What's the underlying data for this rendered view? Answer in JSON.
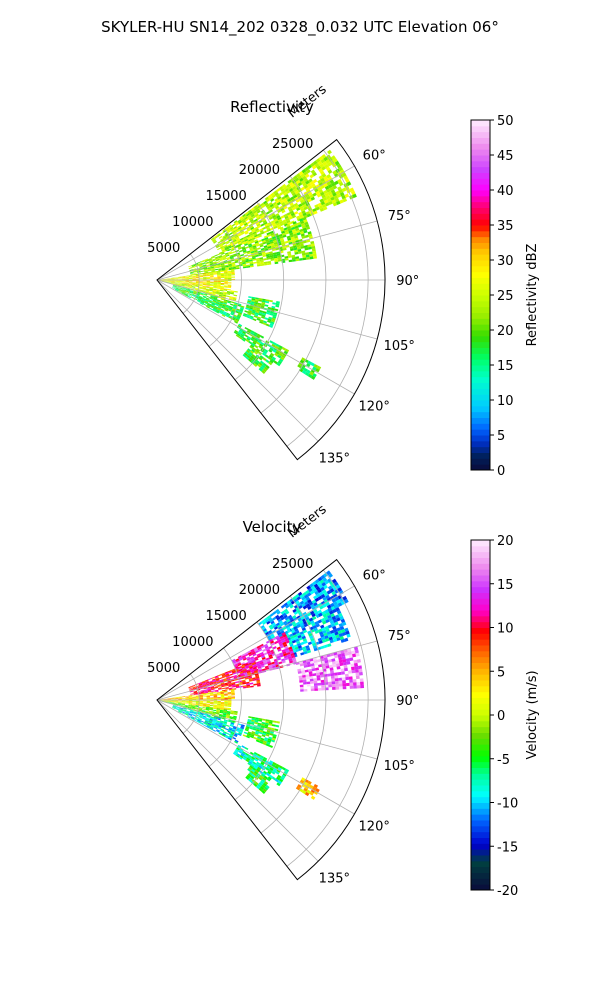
{
  "figure_title": "SKYLER-HU  SN14_202  0328_0.032 UTC Elevation 06°",
  "chart_data": [
    {
      "type": "heatmap",
      "subtype": "polar-sector radar PPI",
      "title": "Reflectivity",
      "radial_label": "Meters",
      "r_ticks": [
        5000,
        10000,
        15000,
        20000,
        25000
      ],
      "r_tick_labels": [
        "5000",
        "10000",
        "15000",
        "20000",
        "25000"
      ],
      "r_max": 27000,
      "theta_range_deg": [
        52,
        142
      ],
      "theta_ticks": [
        60,
        75,
        90,
        105,
        120,
        135
      ],
      "theta_tick_labels": [
        "60°",
        "75°",
        "90°",
        "105°",
        "120°",
        "135°"
      ],
      "grid": true,
      "colorbar": {
        "label": "Reflectivity dBZ",
        "range": [
          0,
          50
        ],
        "ticks": [
          0,
          5,
          10,
          15,
          20,
          25,
          30,
          35,
          40,
          45,
          50
        ],
        "tick_labels": [
          "0",
          "5",
          "10",
          "15",
          "20",
          "25",
          "30",
          "35",
          "40",
          "45",
          "50"
        ]
      },
      "echo_regions": [
        {
          "az": [
            53,
            67
          ],
          "r": [
            8000,
            25500
          ],
          "mean": 24
        },
        {
          "az": [
            67,
            82
          ],
          "r": [
            4000,
            19000
          ],
          "mean": 22
        },
        {
          "az": [
            82,
            90
          ],
          "r": [
            0,
            9000
          ],
          "mean": 27
        },
        {
          "az": [
            90,
            98
          ],
          "r": [
            0,
            8500
          ],
          "mean": 28
        },
        {
          "az": [
            98,
            106
          ],
          "r": [
            0,
            9500
          ],
          "mean": 25
        },
        {
          "az": [
            106,
            118
          ],
          "r": [
            2000,
            10500
          ],
          "mean": 18
        },
        {
          "az": [
            100,
            112
          ],
          "r": [
            11000,
            14500
          ],
          "mean": 18
        },
        {
          "az": [
            118,
            125
          ],
          "r": [
            11000,
            17500
          ],
          "mean": 18
        },
        {
          "az": [
            125,
            131
          ],
          "r": [
            13500,
            16500
          ],
          "mean": 19
        },
        {
          "az": [
            118,
            122
          ],
          "r": [
            19500,
            22000
          ],
          "mean": 18
        }
      ]
    },
    {
      "type": "heatmap",
      "subtype": "polar-sector radar PPI",
      "title": "Velocity",
      "radial_label": "Meters",
      "r_ticks": [
        5000,
        10000,
        15000,
        20000,
        25000
      ],
      "r_tick_labels": [
        "5000",
        "10000",
        "15000",
        "20000",
        "25000"
      ],
      "r_max": 27000,
      "theta_range_deg": [
        52,
        142
      ],
      "theta_ticks": [
        60,
        75,
        90,
        105,
        120,
        135
      ],
      "theta_tick_labels": [
        "60°",
        "75°",
        "90°",
        "105°",
        "120°",
        "135°"
      ],
      "grid": true,
      "colorbar": {
        "label": "Velocity (m/s)",
        "range": [
          -20,
          20
        ],
        "ticks": [
          -20,
          -15,
          -10,
          -5,
          0,
          5,
          10,
          15,
          20
        ],
        "tick_labels": [
          "-20",
          "-15",
          "-10",
          "-5",
          "0",
          "5",
          "10",
          "15",
          "20"
        ]
      },
      "echo_regions": [
        {
          "az": [
            53,
            62
          ],
          "r": [
            15000,
            25500
          ],
          "mean": -11
        },
        {
          "az": [
            62,
            72
          ],
          "r": [
            17000,
            24000
          ],
          "mean": -10
        },
        {
          "az": [
            62,
            75
          ],
          "r": [
            10000,
            17000
          ],
          "mean": 13
        },
        {
          "az": [
            75,
            86
          ],
          "r": [
            17000,
            24500
          ],
          "mean": 16
        },
        {
          "az": [
            68,
            82
          ],
          "r": [
            4000,
            12000
          ],
          "mean": 10
        },
        {
          "az": [
            82,
            90
          ],
          "r": [
            0,
            9000
          ],
          "mean": 4
        },
        {
          "az": [
            90,
            98
          ],
          "r": [
            0,
            8500
          ],
          "mean": 2
        },
        {
          "az": [
            98,
            106
          ],
          "r": [
            0,
            9500
          ],
          "mean": -3
        },
        {
          "az": [
            106,
            118
          ],
          "r": [
            2000,
            10500
          ],
          "mean": -9
        },
        {
          "az": [
            100,
            112
          ],
          "r": [
            11000,
            14500
          ],
          "mean": -4
        },
        {
          "az": [
            118,
            125
          ],
          "r": [
            11000,
            17500
          ],
          "mean": -7
        },
        {
          "az": [
            125,
            131
          ],
          "r": [
            13500,
            16500
          ],
          "mean": -5
        },
        {
          "az": [
            118,
            122
          ],
          "r": [
            19500,
            22000
          ],
          "mean": 4
        }
      ]
    }
  ]
}
